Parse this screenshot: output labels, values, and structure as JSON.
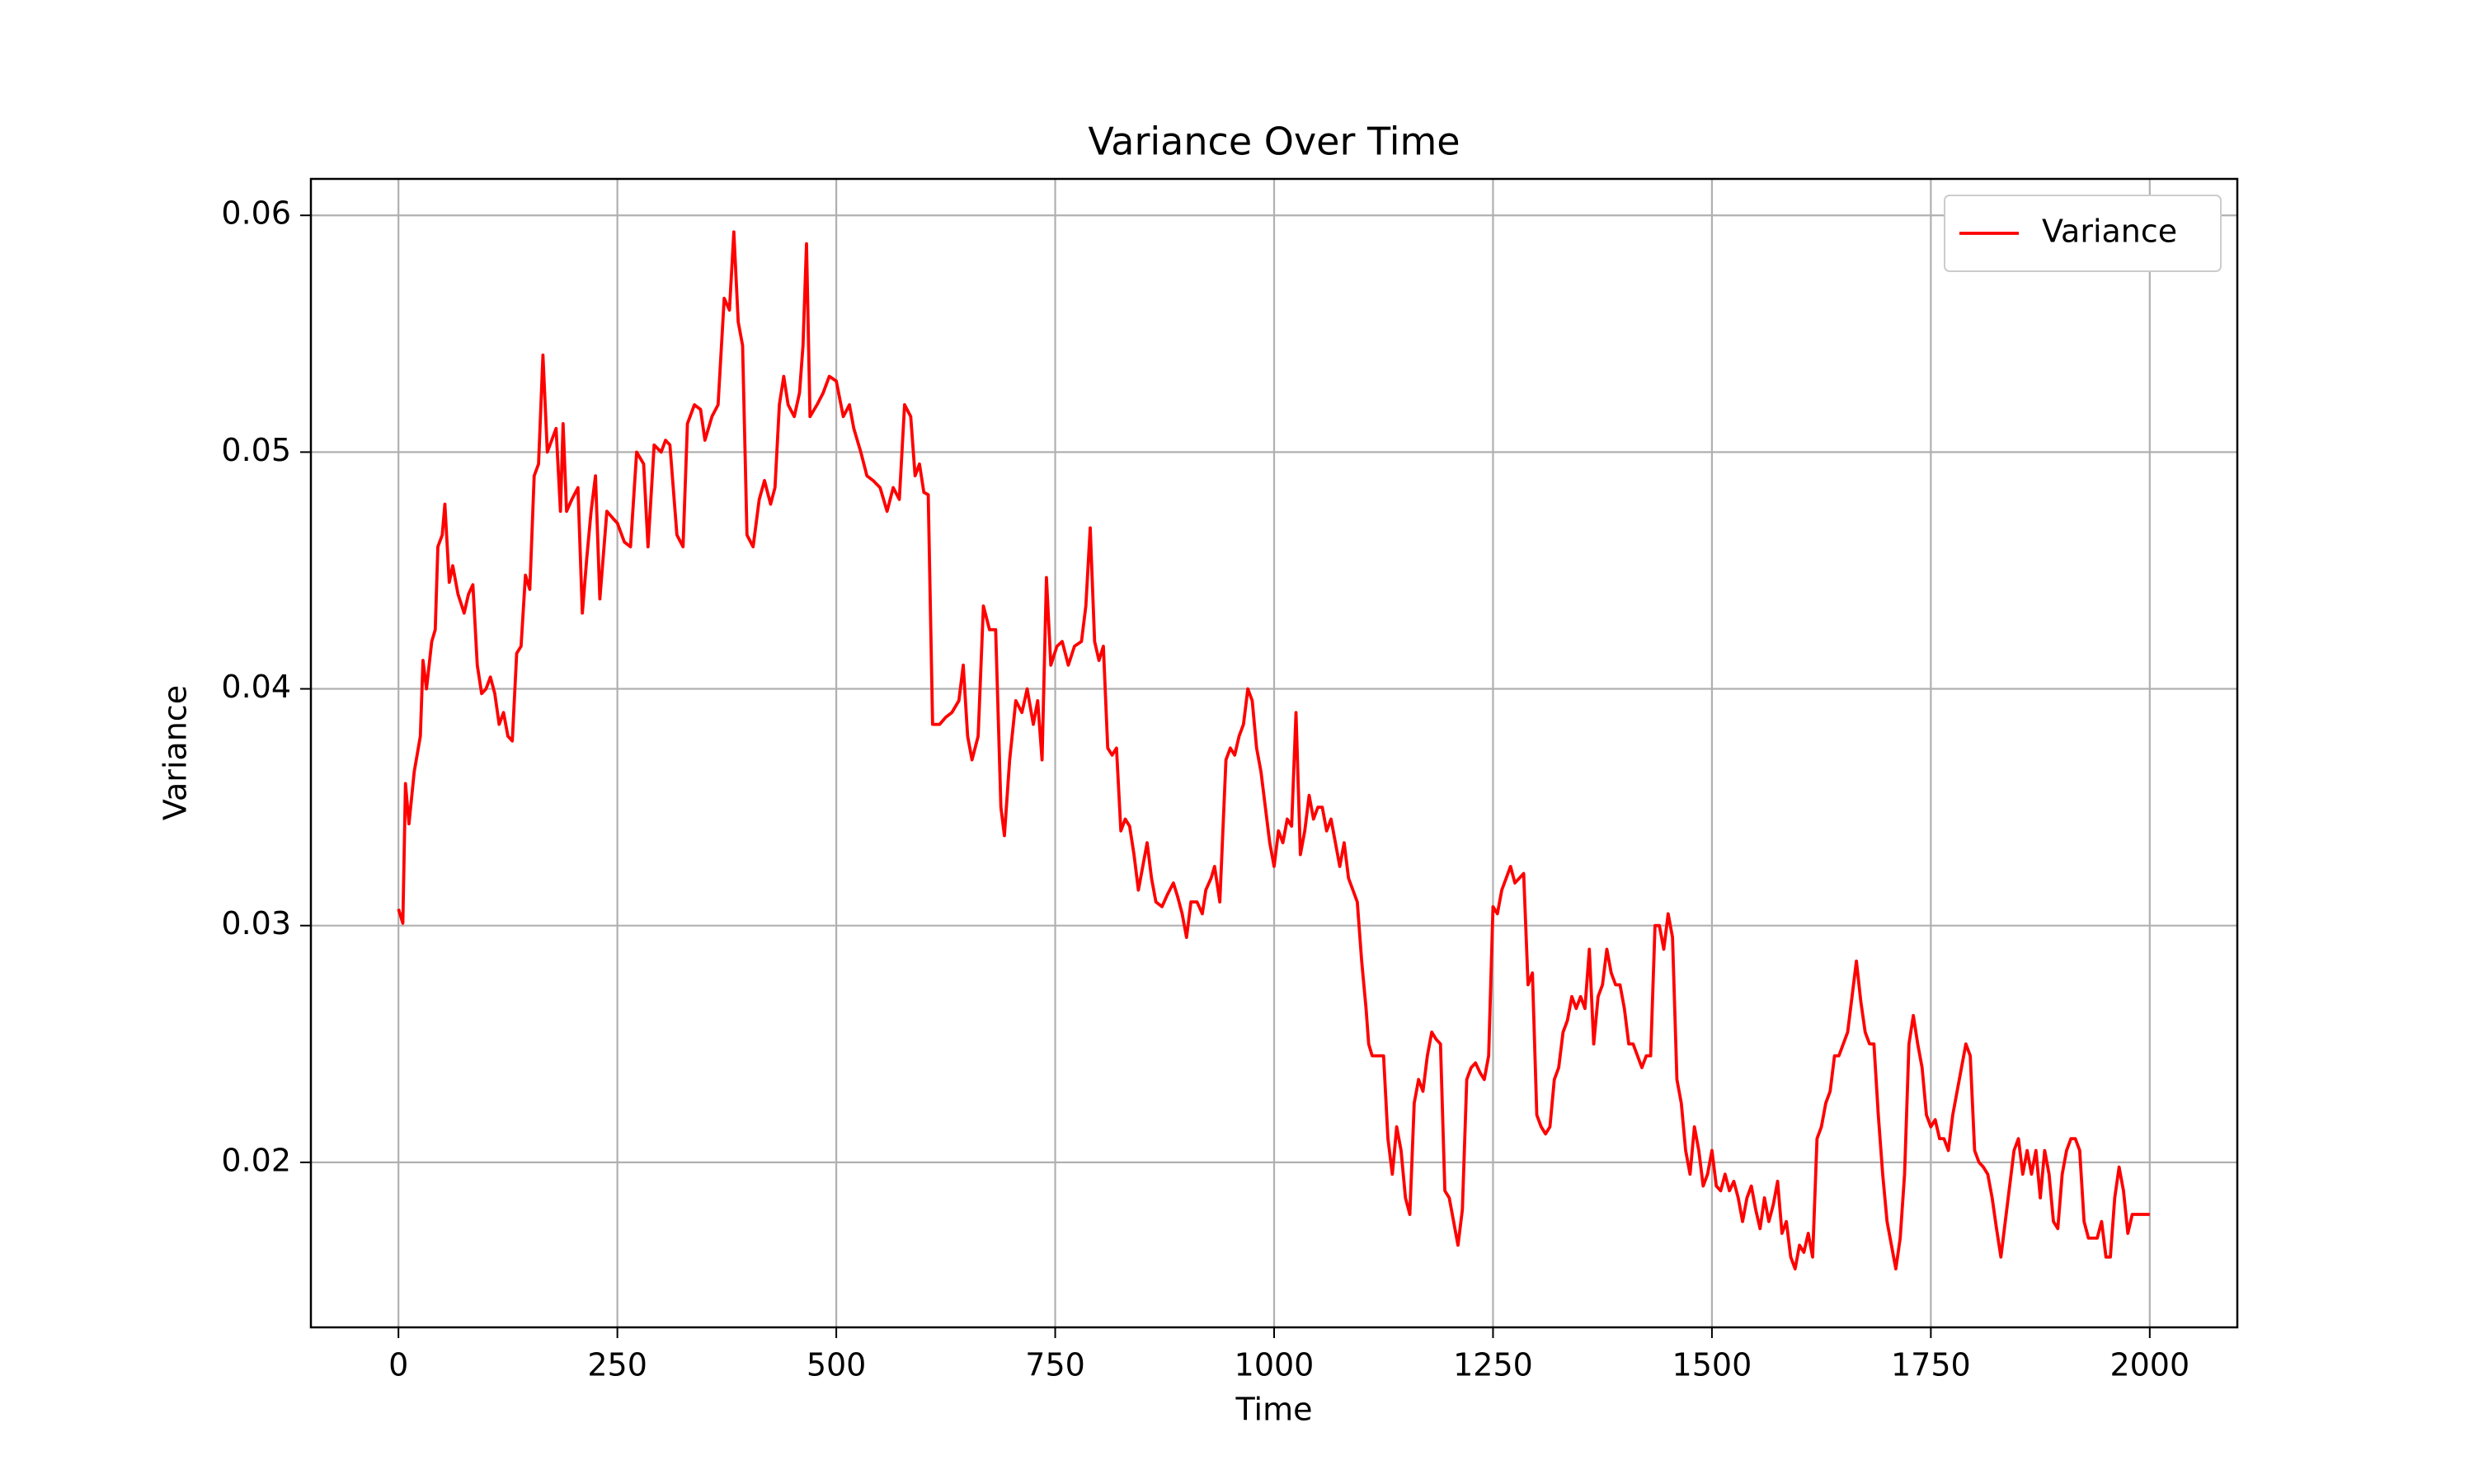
{
  "chart_data": {
    "type": "line",
    "title": "Variance Over Time",
    "x_label": "Time",
    "y_label": "Variance",
    "x": [
      0,
      5,
      8,
      12,
      18,
      25,
      28,
      32,
      38,
      42,
      45,
      50,
      53,
      58,
      62,
      68,
      75,
      80,
      85,
      90,
      95,
      100,
      105,
      110,
      115,
      120,
      125,
      130,
      135,
      140,
      145,
      150,
      155,
      160,
      165,
      170,
      175,
      180,
      185,
      188,
      192,
      198,
      205,
      210,
      215,
      220,
      225,
      230,
      238,
      245,
      250,
      258,
      265,
      272,
      280,
      285,
      292,
      300,
      305,
      310,
      318,
      325,
      330,
      338,
      345,
      350,
      358,
      365,
      372,
      378,
      383,
      388,
      393,
      398,
      405,
      412,
      418,
      425,
      430,
      435,
      440,
      445,
      452,
      458,
      462,
      466,
      470,
      478,
      485,
      492,
      500,
      508,
      515,
      520,
      528,
      535,
      542,
      550,
      558,
      565,
      572,
      578,
      585,
      590,
      595,
      600,
      605,
      610,
      618,
      625,
      632,
      640,
      645,
      650,
      655,
      662,
      668,
      675,
      682,
      688,
      692,
      698,
      705,
      712,
      718,
      725,
      730,
      735,
      740,
      745,
      752,
      758,
      765,
      772,
      780,
      785,
      790,
      795,
      800,
      805,
      810,
      815,
      820,
      825,
      830,
      835,
      840,
      845,
      850,
      855,
      860,
      865,
      872,
      878,
      885,
      890,
      895,
      900,
      905,
      912,
      918,
      922,
      928,
      932,
      938,
      945,
      950,
      955,
      960,
      965,
      970,
      975,
      980,
      985,
      990,
      995,
      1000,
      1005,
      1010,
      1015,
      1020,
      1025,
      1030,
      1035,
      1040,
      1045,
      1050,
      1055,
      1060,
      1065,
      1070,
      1075,
      1080,
      1085,
      1090,
      1095,
      1100,
      1105,
      1108,
      1112,
      1118,
      1125,
      1130,
      1135,
      1140,
      1145,
      1150,
      1155,
      1160,
      1165,
      1170,
      1175,
      1180,
      1185,
      1190,
      1195,
      1200,
      1205,
      1210,
      1215,
      1220,
      1225,
      1230,
      1235,
      1240,
      1245,
      1250,
      1255,
      1260,
      1265,
      1270,
      1275,
      1280,
      1285,
      1290,
      1295,
      1300,
      1305,
      1310,
      1315,
      1320,
      1325,
      1330,
      1335,
      1340,
      1345,
      1350,
      1355,
      1360,
      1365,
      1370,
      1375,
      1380,
      1385,
      1390,
      1395,
      1400,
      1405,
      1410,
      1415,
      1420,
      1425,
      1430,
      1435,
      1440,
      1445,
      1450,
      1455,
      1460,
      1465,
      1470,
      1475,
      1480,
      1485,
      1490,
      1495,
      1500,
      1505,
      1510,
      1515,
      1520,
      1525,
      1530,
      1535,
      1540,
      1545,
      1550,
      1555,
      1560,
      1565,
      1570,
      1575,
      1580,
      1585,
      1590,
      1595,
      1600,
      1605,
      1610,
      1615,
      1620,
      1625,
      1630,
      1635,
      1640,
      1645,
      1650,
      1655,
      1660,
      1665,
      1670,
      1675,
      1680,
      1685,
      1690,
      1695,
      1700,
      1705,
      1710,
      1715,
      1720,
      1725,
      1730,
      1735,
      1740,
      1745,
      1750,
      1755,
      1760,
      1765,
      1770,
      1775,
      1780,
      1785,
      1790,
      1795,
      1800,
      1805,
      1810,
      1815,
      1820,
      1825,
      1830,
      1835,
      1840,
      1845,
      1850,
      1855,
      1860,
      1865,
      1870,
      1875,
      1880,
      1885,
      1890,
      1895,
      1900,
      1905,
      1910,
      1915,
      1920,
      1925,
      1930,
      1935,
      1940,
      1945,
      1950,
      1955,
      1960,
      1965,
      1970,
      1975,
      1980,
      1985,
      1990,
      2000
    ],
    "series": [
      {
        "name": "Variance",
        "color": "#ff0000",
        "values": [
          0.0307,
          0.0301,
          0.036,
          0.0343,
          0.0365,
          0.038,
          0.0412,
          0.04,
          0.042,
          0.0425,
          0.046,
          0.0465,
          0.0478,
          0.0445,
          0.0452,
          0.044,
          0.0432,
          0.044,
          0.0444,
          0.041,
          0.0398,
          0.04,
          0.0405,
          0.0398,
          0.0385,
          0.039,
          0.038,
          0.0378,
          0.0415,
          0.0418,
          0.0448,
          0.0442,
          0.049,
          0.0495,
          0.0541,
          0.05,
          0.0505,
          0.051,
          0.0475,
          0.0512,
          0.0475,
          0.048,
          0.0485,
          0.0432,
          0.0455,
          0.0475,
          0.049,
          0.0438,
          0.0475,
          0.0472,
          0.047,
          0.0462,
          0.046,
          0.05,
          0.0495,
          0.046,
          0.0503,
          0.05,
          0.0505,
          0.0503,
          0.0465,
          0.046,
          0.0512,
          0.052,
          0.0518,
          0.0505,
          0.0515,
          0.052,
          0.0565,
          0.056,
          0.0593,
          0.0555,
          0.0545,
          0.0465,
          0.046,
          0.048,
          0.0488,
          0.0478,
          0.0485,
          0.052,
          0.0532,
          0.052,
          0.0515,
          0.0525,
          0.0545,
          0.0588,
          0.0515,
          0.052,
          0.0525,
          0.0532,
          0.053,
          0.0515,
          0.052,
          0.051,
          0.05,
          0.049,
          0.0488,
          0.0485,
          0.0475,
          0.0485,
          0.048,
          0.052,
          0.0515,
          0.049,
          0.0495,
          0.0483,
          0.0482,
          0.0385,
          0.0385,
          0.0388,
          0.039,
          0.0395,
          0.041,
          0.038,
          0.037,
          0.038,
          0.0435,
          0.0425,
          0.0425,
          0.035,
          0.0338,
          0.037,
          0.0395,
          0.039,
          0.04,
          0.0385,
          0.0395,
          0.037,
          0.0447,
          0.041,
          0.0418,
          0.042,
          0.041,
          0.0418,
          0.042,
          0.0435,
          0.0468,
          0.042,
          0.0412,
          0.0418,
          0.0375,
          0.0372,
          0.0375,
          0.034,
          0.0345,
          0.0342,
          0.033,
          0.0315,
          0.0325,
          0.0335,
          0.032,
          0.031,
          0.0308,
          0.0313,
          0.0318,
          0.0312,
          0.0305,
          0.0295,
          0.031,
          0.031,
          0.0305,
          0.0315,
          0.032,
          0.0325,
          0.031,
          0.037,
          0.0375,
          0.0372,
          0.038,
          0.0385,
          0.04,
          0.0395,
          0.0375,
          0.0365,
          0.035,
          0.0335,
          0.0325,
          0.034,
          0.0335,
          0.0345,
          0.0342,
          0.039,
          0.033,
          0.034,
          0.0355,
          0.0345,
          0.035,
          0.035,
          0.034,
          0.0345,
          0.0335,
          0.0325,
          0.0335,
          0.032,
          0.0315,
          0.031,
          0.0285,
          0.0265,
          0.025,
          0.0245,
          0.0245,
          0.0245,
          0.021,
          0.0195,
          0.0215,
          0.0205,
          0.0185,
          0.0178,
          0.0225,
          0.0235,
          0.023,
          0.0245,
          0.0255,
          0.0252,
          0.025,
          0.0188,
          0.0185,
          0.0175,
          0.0165,
          0.018,
          0.0235,
          0.024,
          0.0242,
          0.0238,
          0.0235,
          0.0245,
          0.0308,
          0.0305,
          0.0315,
          0.032,
          0.0325,
          0.0318,
          0.032,
          0.0322,
          0.0275,
          0.028,
          0.022,
          0.0215,
          0.0212,
          0.0215,
          0.0235,
          0.024,
          0.0255,
          0.026,
          0.027,
          0.0265,
          0.027,
          0.0265,
          0.029,
          0.025,
          0.027,
          0.0275,
          0.029,
          0.028,
          0.0275,
          0.0275,
          0.0265,
          0.025,
          0.025,
          0.0245,
          0.024,
          0.0245,
          0.0245,
          0.03,
          0.03,
          0.029,
          0.0305,
          0.0295,
          0.0235,
          0.0225,
          0.0205,
          0.0195,
          0.0215,
          0.0205,
          0.019,
          0.0195,
          0.0205,
          0.019,
          0.0188,
          0.0195,
          0.0188,
          0.0192,
          0.0185,
          0.0175,
          0.0185,
          0.019,
          0.018,
          0.0172,
          0.0185,
          0.0175,
          0.0182,
          0.0192,
          0.017,
          0.0175,
          0.016,
          0.0155,
          0.0165,
          0.0162,
          0.017,
          0.016,
          0.021,
          0.0215,
          0.0225,
          0.023,
          0.0245,
          0.0245,
          0.025,
          0.0255,
          0.027,
          0.0285,
          0.0268,
          0.0255,
          0.025,
          0.025,
          0.022,
          0.0195,
          0.0175,
          0.0165,
          0.0155,
          0.0168,
          0.0195,
          0.025,
          0.0262,
          0.025,
          0.024,
          0.022,
          0.0215,
          0.0218,
          0.021,
          0.021,
          0.0205,
          0.022,
          0.023,
          0.024,
          0.025,
          0.0245,
          0.0205,
          0.02,
          0.0198,
          0.0195,
          0.0185,
          0.0172,
          0.016,
          0.0175,
          0.019,
          0.0205,
          0.021,
          0.0195,
          0.0205,
          0.0195,
          0.0205,
          0.0185,
          0.0205,
          0.0195,
          0.0175,
          0.0172,
          0.0195,
          0.0205,
          0.021,
          0.021,
          0.0205,
          0.0175,
          0.0168,
          0.0168,
          0.0168,
          0.0175,
          0.016,
          0.016,
          0.0185,
          0.0198,
          0.0188,
          0.017,
          0.0178,
          0.0178,
          0.0178,
          0.0178
        ]
      }
    ],
    "xlim": [
      -100,
      2100
    ],
    "ylim": [
      0.01303,
      0.06154
    ],
    "xticks": [
      0,
      250,
      500,
      750,
      1000,
      1250,
      1500,
      1750,
      2000
    ],
    "yticks": [
      0.02,
      0.03,
      0.04,
      0.05,
      0.06
    ],
    "grid": true,
    "legend": "upper right"
  }
}
